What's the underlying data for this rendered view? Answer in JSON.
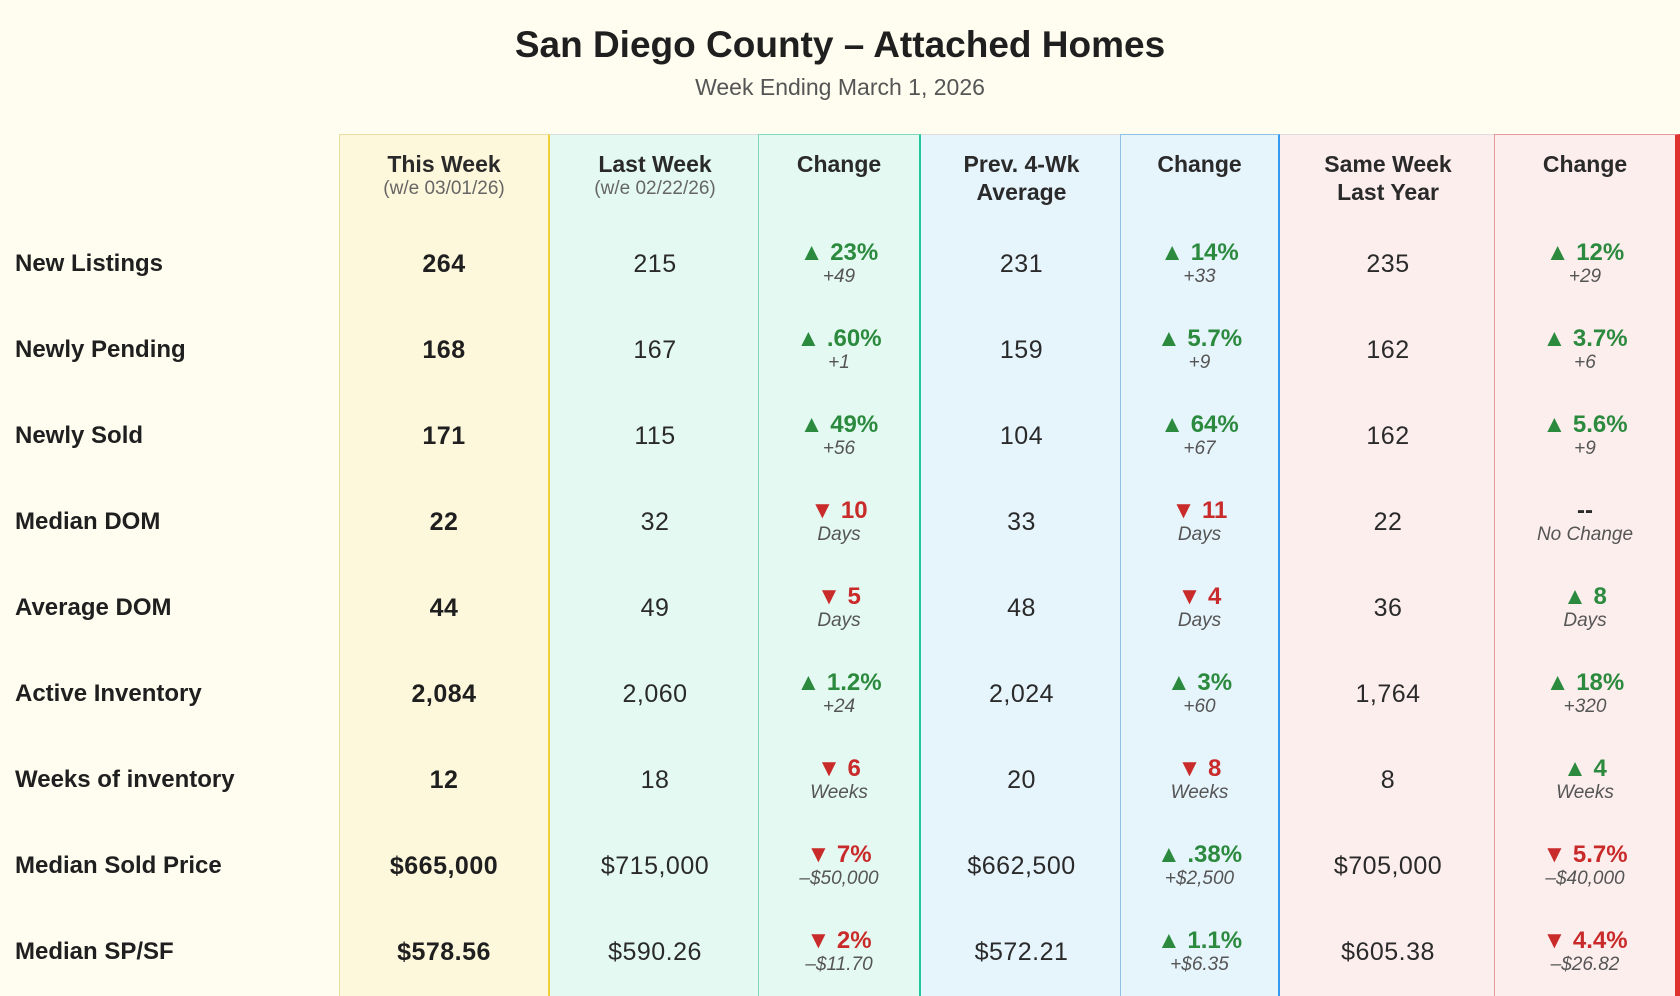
{
  "title": "San Diego County – Attached Homes",
  "subtitle": "Week Ending March 1, 2026",
  "colors": {
    "this_week_bg": "#fdf7db",
    "this_week_border": "#f2d03b",
    "last_week_bg": "#e4f9f1",
    "last_week_border": "#20c997",
    "prev4_bg": "#e6f4fc",
    "prev4_border": "#339af0",
    "lastyear_bg": "#fdeeee",
    "lastyear_border": "#e03131",
    "up": "#2b8a3e",
    "down": "#c92a2a"
  },
  "columns": [
    {
      "key": "this_week",
      "label": "This Week",
      "sub": "(w/e 03/01/26)"
    },
    {
      "key": "last_week",
      "label": "Last Week",
      "sub": "(w/e 02/22/26)"
    },
    {
      "key": "chg1",
      "label": "Change",
      "sub": ""
    },
    {
      "key": "prev4",
      "label": "Prev. 4-Wk Average",
      "sub": ""
    },
    {
      "key": "chg2",
      "label": "Change",
      "sub": ""
    },
    {
      "key": "last_year",
      "label": "Same Week Last Year",
      "sub": ""
    },
    {
      "key": "chg3",
      "label": "Change",
      "sub": ""
    }
  ],
  "rows": [
    {
      "label": "New Listings",
      "this_week": "264",
      "last_week": "215",
      "chg1": {
        "dir": "up",
        "main": "▲ 23%",
        "sub": "+49"
      },
      "prev4": "231",
      "chg2": {
        "dir": "up",
        "main": "▲ 14%",
        "sub": "+33"
      },
      "last_year": "235",
      "chg3": {
        "dir": "up",
        "main": "▲ 12%",
        "sub": "+29"
      }
    },
    {
      "label": "Newly Pending",
      "this_week": "168",
      "last_week": "167",
      "chg1": {
        "dir": "up",
        "main": "▲ .60%",
        "sub": "+1"
      },
      "prev4": "159",
      "chg2": {
        "dir": "up",
        "main": "▲ 5.7%",
        "sub": "+9"
      },
      "last_year": "162",
      "chg3": {
        "dir": "up",
        "main": "▲ 3.7%",
        "sub": "+6"
      }
    },
    {
      "label": "Newly Sold",
      "this_week": "171",
      "last_week": "115",
      "chg1": {
        "dir": "up",
        "main": "▲ 49%",
        "sub": "+56"
      },
      "prev4": "104",
      "chg2": {
        "dir": "up",
        "main": "▲ 64%",
        "sub": "+67"
      },
      "last_year": "162",
      "chg3": {
        "dir": "up",
        "main": "▲ 5.6%",
        "sub": "+9"
      }
    },
    {
      "label": "Median DOM",
      "this_week": "22",
      "last_week": "32",
      "chg1": {
        "dir": "down",
        "main": "▼ 10",
        "sub": "Days"
      },
      "prev4": "33",
      "chg2": {
        "dir": "down",
        "main": "▼ 11",
        "sub": "Days"
      },
      "last_year": "22",
      "chg3": {
        "dir": "none",
        "main": "--",
        "sub": "No Change"
      }
    },
    {
      "label": "Average DOM",
      "this_week": "44",
      "last_week": "49",
      "chg1": {
        "dir": "down",
        "main": "▼ 5",
        "sub": "Days"
      },
      "prev4": "48",
      "chg2": {
        "dir": "down",
        "main": "▼ 4",
        "sub": "Days"
      },
      "last_year": "36",
      "chg3": {
        "dir": "up",
        "main": "▲ 8",
        "sub": "Days"
      }
    },
    {
      "label": "Active Inventory",
      "this_week": "2,084",
      "last_week": "2,060",
      "chg1": {
        "dir": "up",
        "main": "▲ 1.2%",
        "sub": "+24"
      },
      "prev4": "2,024",
      "chg2": {
        "dir": "up",
        "main": "▲ 3%",
        "sub": "+60"
      },
      "last_year": "1,764",
      "chg3": {
        "dir": "up",
        "main": "▲ 18%",
        "sub": "+320"
      }
    },
    {
      "label": "Weeks of inventory",
      "this_week": "12",
      "last_week": "18",
      "chg1": {
        "dir": "down",
        "main": "▼ 6",
        "sub": "Weeks"
      },
      "prev4": "20",
      "chg2": {
        "dir": "down",
        "main": "▼ 8",
        "sub": "Weeks"
      },
      "last_year": "8",
      "chg3": {
        "dir": "up",
        "main": "▲ 4",
        "sub": "Weeks"
      }
    },
    {
      "label": "Median Sold Price",
      "this_week": "$665,000",
      "last_week": "$715,000",
      "chg1": {
        "dir": "down",
        "main": "▼ 7%",
        "sub": "–$50,000"
      },
      "prev4": "$662,500",
      "chg2": {
        "dir": "up",
        "main": "▲ .38%",
        "sub": "+$2,500"
      },
      "last_year": "$705,000",
      "chg3": {
        "dir": "down",
        "main": "▼ 5.7%",
        "sub": "–$40,000"
      }
    },
    {
      "label": "Median SP/SF",
      "this_week": "$578.56",
      "last_week": "$590.26",
      "chg1": {
        "dir": "down",
        "main": "▼ 2%",
        "sub": "–$11.70"
      },
      "prev4": "$572.21",
      "chg2": {
        "dir": "up",
        "main": "▲ 1.1%",
        "sub": "+$6.35"
      },
      "last_year": "$605.38",
      "chg3": {
        "dir": "down",
        "main": "▼ 4.4%",
        "sub": "–$26.82"
      }
    }
  ]
}
